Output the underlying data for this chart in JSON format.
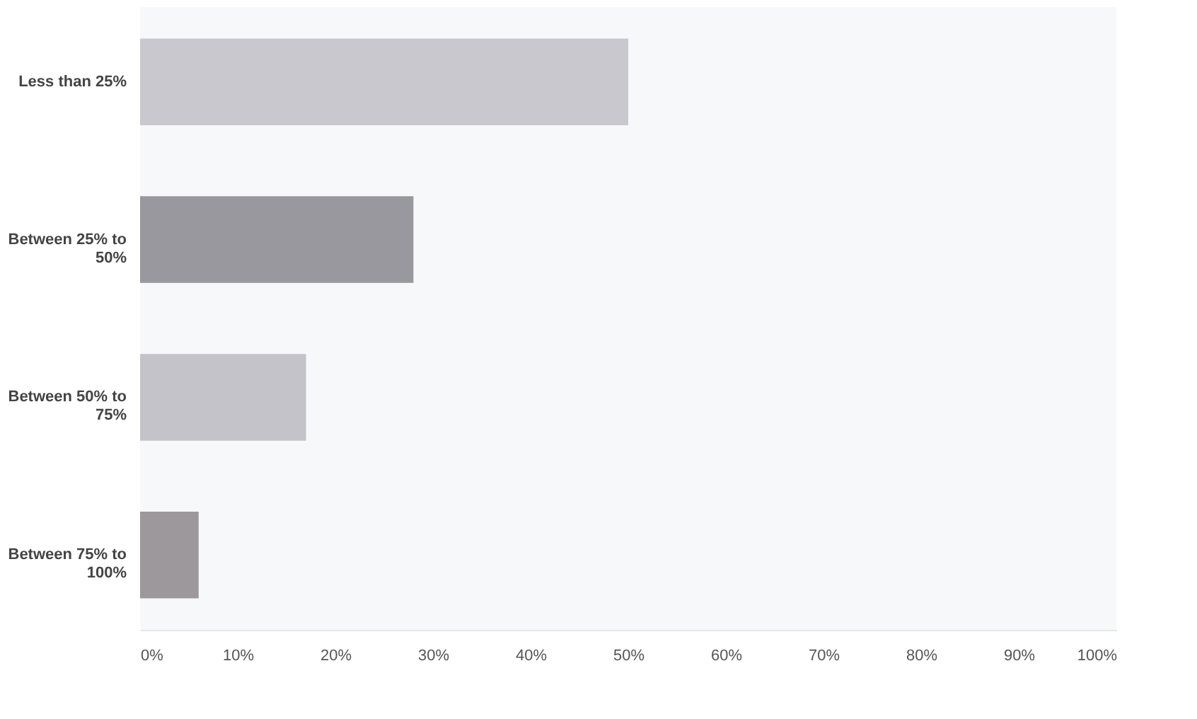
{
  "chart_data": {
    "type": "bar",
    "orientation": "horizontal",
    "categories": [
      "Less than 25%",
      "Between 25% to 50%",
      "Between 50% to 75%",
      "Between 75% to 100%"
    ],
    "values": [
      50,
      28,
      17,
      6
    ],
    "colors": [
      "#c8c8ce",
      "#99989e",
      "#c5c3ca",
      "#9c989c"
    ],
    "xlim": [
      0,
      100
    ],
    "xticks": [
      {
        "value": 0,
        "label": "0%"
      },
      {
        "value": 10,
        "label": "10%"
      },
      {
        "value": 20,
        "label": "20%"
      },
      {
        "value": 30,
        "label": "30%"
      },
      {
        "value": 40,
        "label": "40%"
      },
      {
        "value": 50,
        "label": "50%"
      },
      {
        "value": 60,
        "label": "60%"
      },
      {
        "value": 70,
        "label": "70%"
      },
      {
        "value": 80,
        "label": "80%"
      },
      {
        "value": 90,
        "label": "90%"
      },
      {
        "value": 100,
        "label": "100%"
      }
    ],
    "grid": false
  }
}
